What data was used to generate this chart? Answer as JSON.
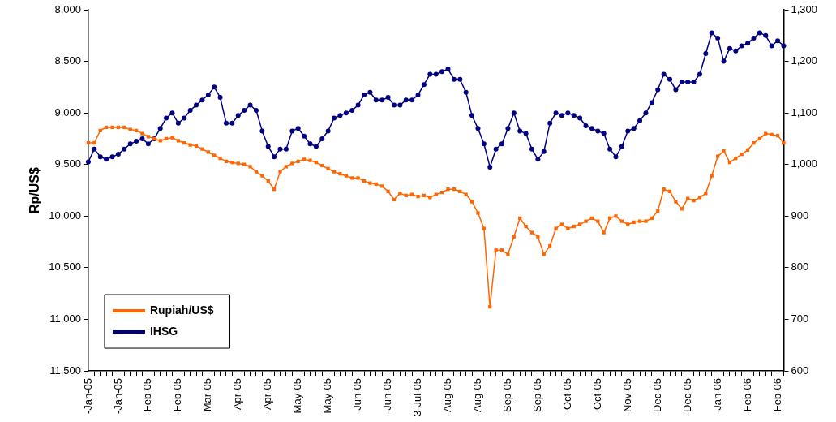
{
  "chart_data": {
    "type": "line",
    "ylabel": "Rp/US$",
    "categories": [
      "-Jan-05",
      null,
      null,
      null,
      null,
      "-Jan-05",
      null,
      null,
      null,
      null,
      "-Feb-05",
      null,
      null,
      null,
      null,
      "-Feb-05",
      null,
      null,
      null,
      null,
      "-Mar-05",
      null,
      null,
      null,
      null,
      "-Apr-05",
      null,
      null,
      null,
      null,
      "-Apr-05",
      null,
      null,
      null,
      null,
      "May-05",
      null,
      null,
      null,
      null,
      "May-05",
      null,
      null,
      null,
      null,
      "-Jun-05",
      null,
      null,
      null,
      null,
      "-Jun-05",
      null,
      null,
      null,
      null,
      "3-Jul-05",
      null,
      null,
      null,
      null,
      "-Aug-05",
      null,
      null,
      null,
      null,
      "-Aug-05",
      null,
      null,
      null,
      null,
      "-Sep-05",
      null,
      null,
      null,
      null,
      "-Sep-05",
      null,
      null,
      null,
      null,
      "-Oct-05",
      null,
      null,
      null,
      null,
      "-Oct-05",
      null,
      null,
      null,
      null,
      "-Nov-05",
      null,
      null,
      null,
      null,
      "-Dec-05",
      null,
      null,
      null,
      null,
      "-Dec-05",
      null,
      null,
      null,
      null,
      "-Jan-06",
      null,
      null,
      null,
      null,
      "-Feb-06",
      null,
      null,
      null,
      null,
      "-Feb-06",
      null
    ],
    "series": [
      {
        "name": "Rupiah/US$",
        "color": "#ff6600",
        "marker": "square",
        "values": [
          9290,
          9290,
          9170,
          9140,
          9140,
          9140,
          9140,
          9160,
          9170,
          9200,
          9230,
          9250,
          9270,
          9250,
          9240,
          9270,
          9290,
          9310,
          9320,
          9350,
          9380,
          9410,
          9440,
          9470,
          9480,
          9490,
          9500,
          9520,
          9570,
          9610,
          9660,
          9740,
          9570,
          9520,
          9490,
          9470,
          9450,
          9460,
          9480,
          9510,
          9540,
          9570,
          9590,
          9610,
          9630,
          9630,
          9660,
          9680,
          9690,
          9710,
          9760,
          9840,
          9780,
          9800,
          9790,
          9810,
          9800,
          9820,
          9790,
          9770,
          9740,
          9740,
          9760,
          9790,
          9860,
          9970,
          10120,
          10880,
          10330,
          10330,
          10370,
          10200,
          10020,
          10100,
          10160,
          10200,
          10370,
          10290,
          10120,
          10080,
          10120,
          10100,
          10080,
          10050,
          10020,
          10050,
          10160,
          10020,
          10000,
          10050,
          10080,
          10060,
          10050,
          10050,
          10020,
          9950,
          9740,
          9760,
          9860,
          9930,
          9830,
          9850,
          9820,
          9780,
          9610,
          9420,
          9370,
          9480,
          9440,
          9400,
          9360,
          9290,
          9250,
          9200,
          9210,
          9220,
          9290
        ]
      },
      {
        "name": "IHSG",
        "color": "#000080",
        "marker": "circle",
        "axis": "y2",
        "values": [
          1005,
          1030,
          1015,
          1010,
          1015,
          1020,
          1030,
          1040,
          1045,
          1050,
          1040,
          1050,
          1070,
          1090,
          1100,
          1080,
          1090,
          1105,
          1115,
          1125,
          1135,
          1150,
          1130,
          1080,
          1080,
          1095,
          1105,
          1115,
          1105,
          1065,
          1035,
          1015,
          1030,
          1030,
          1065,
          1070,
          1055,
          1040,
          1035,
          1050,
          1065,
          1090,
          1095,
          1100,
          1105,
          1115,
          1135,
          1140,
          1125,
          1125,
          1130,
          1115,
          1115,
          1125,
          1125,
          1135,
          1155,
          1175,
          1175,
          1180,
          1185,
          1165,
          1165,
          1140,
          1095,
          1070,
          1040,
          995,
          1030,
          1040,
          1070,
          1100,
          1065,
          1060,
          1030,
          1010,
          1025,
          1080,
          1100,
          1095,
          1100,
          1095,
          1090,
          1075,
          1070,
          1065,
          1060,
          1030,
          1015,
          1035,
          1065,
          1070,
          1085,
          1100,
          1120,
          1145,
          1175,
          1165,
          1145,
          1160,
          1160,
          1160,
          1175,
          1215,
          1255,
          1245,
          1200,
          1225,
          1220,
          1230,
          1235,
          1245,
          1255,
          1250,
          1230,
          1240,
          1230
        ]
      }
    ],
    "ylim": [
      11500,
      8000
    ],
    "yticks": [
      {
        "value": 8000,
        "label": "8,000"
      },
      {
        "value": 8500,
        "label": "8,500"
      },
      {
        "value": 9000,
        "label": "9,000"
      },
      {
        "value": 9500,
        "label": "9,500"
      },
      {
        "value": 10000,
        "label": "10,000"
      },
      {
        "value": 10500,
        "label": "10,500"
      },
      {
        "value": 11000,
        "label": "11,000"
      },
      {
        "value": 11500,
        "label": "11,500"
      }
    ],
    "y2lim": [
      600,
      1300
    ],
    "y2ticks": [
      600,
      700,
      800,
      900,
      {
        "value": 1000,
        "label": "1,000"
      },
      {
        "value": 1100,
        "label": "1,100"
      },
      {
        "value": 1200,
        "label": "1,200"
      },
      {
        "value": 1300,
        "label": "1,300"
      }
    ],
    "legend": "bottom left"
  }
}
